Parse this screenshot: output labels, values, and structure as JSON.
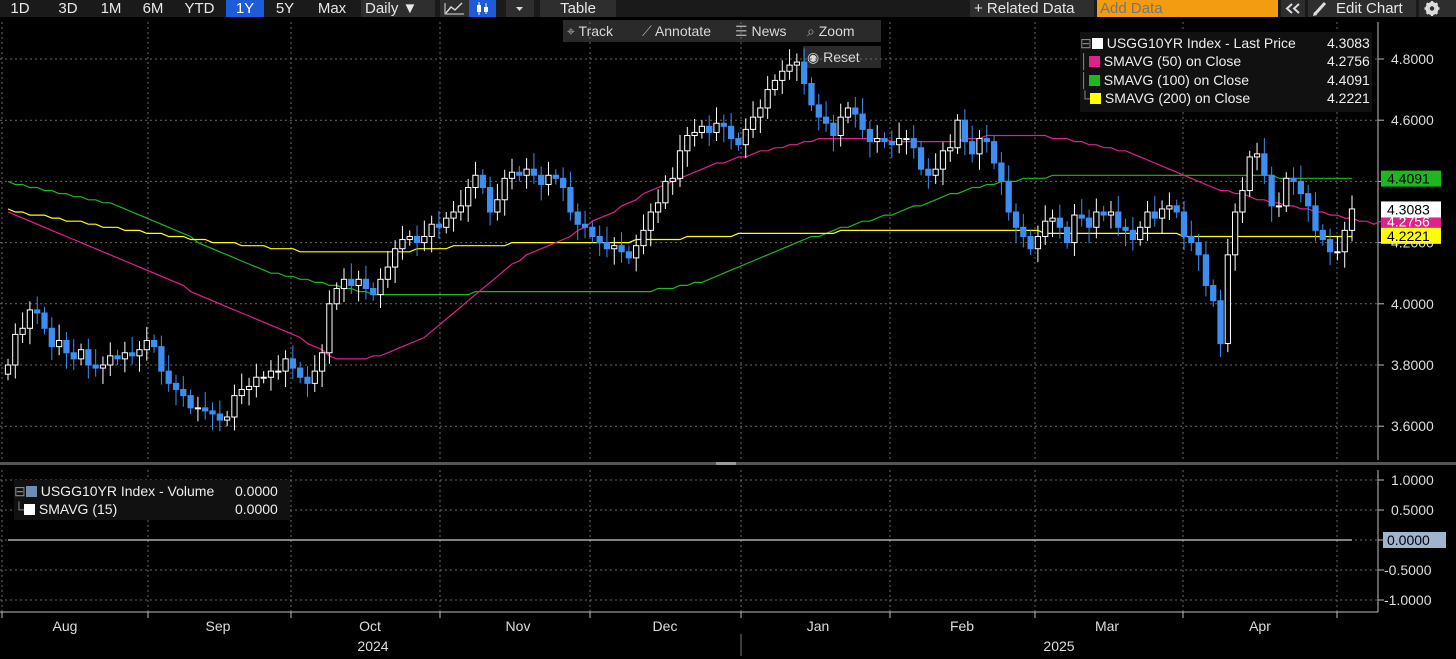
{
  "toolbar": {
    "ranges": [
      "1D",
      "3D",
      "1M",
      "6M",
      "YTD",
      "1Y",
      "5Y",
      "Max"
    ],
    "active_range": "1Y",
    "interval": "Daily ▼",
    "table": "Table",
    "related": "+ Related Data",
    "add_placeholder": "Add Data",
    "edit_chart": "Edit Chart"
  },
  "subtoolbar": {
    "track": "Track",
    "annotate": "Annotate",
    "news": "News",
    "zoom": "Zoom",
    "reset": "Reset"
  },
  "legend_main": [
    {
      "label": "USGG10YR Index - Last Price",
      "value": "4.3083",
      "color": "#ffffff"
    },
    {
      "label": "SMAVG (50)  on Close",
      "value": "4.2756",
      "color": "#e0218a"
    },
    {
      "label": "SMAVG (100)  on Close",
      "value": "4.4091",
      "color": "#1db81d"
    },
    {
      "label": "SMAVG (200)  on Close",
      "value": "4.2221",
      "color": "#ffff00"
    }
  ],
  "legend_lower": [
    {
      "label": "USGG10YR Index - Volume",
      "value": "0.0000",
      "color": "#6e8cb4"
    },
    {
      "label": "SMAVG (15)",
      "value": "0.0000",
      "color": "#ffffff"
    }
  ],
  "chart_data": [
    {
      "type": "candlestick",
      "title": "USGG10YR Index",
      "ylim": [
        3.5,
        4.9
      ],
      "yticks": [
        "4.8000",
        "4.6000",
        "4.4000",
        "4.2000",
        "4.0000",
        "3.8000",
        "3.6000"
      ],
      "months": [
        "Aug",
        "Sep",
        "Oct",
        "Nov",
        "Dec",
        "Jan",
        "Feb",
        "Mar",
        "Apr"
      ],
      "years": [
        "2024",
        "2025"
      ],
      "last_price": 4.3083,
      "value_tags": [
        {
          "text": "4.4091",
          "value": 4.4091,
          "bg": "#1db81d",
          "fg": "#000000"
        },
        {
          "text": "4.3083",
          "value": 4.3083,
          "bg": "#ffffff",
          "fg": "#000000"
        },
        {
          "text": "4.2756",
          "value": 4.2756,
          "bg": "#e0218a",
          "fg": "#ffffff"
        },
        {
          "text": "4.2221",
          "value": 4.2221,
          "bg": "#ffff00",
          "fg": "#000000"
        }
      ],
      "close": [
        3.8,
        3.9,
        3.92,
        3.98,
        3.97,
        3.92,
        3.86,
        3.88,
        3.84,
        3.82,
        3.85,
        3.8,
        3.79,
        3.8,
        3.83,
        3.82,
        3.84,
        3.83,
        3.85,
        3.88,
        3.86,
        3.78,
        3.74,
        3.72,
        3.7,
        3.66,
        3.66,
        3.65,
        3.64,
        3.62,
        3.63,
        3.7,
        3.72,
        3.73,
        3.76,
        3.76,
        3.78,
        3.78,
        3.82,
        3.79,
        3.76,
        3.74,
        3.78,
        3.84,
        4.0,
        4.05,
        4.08,
        4.06,
        4.08,
        4.05,
        4.03,
        4.08,
        4.12,
        4.18,
        4.21,
        4.22,
        4.2,
        4.22,
        4.26,
        4.25,
        4.28,
        4.3,
        4.32,
        4.38,
        4.42,
        4.38,
        4.3,
        4.34,
        4.41,
        4.43,
        4.42,
        4.44,
        4.42,
        4.39,
        4.42,
        4.41,
        4.38,
        4.3,
        4.26,
        4.25,
        4.22,
        4.2,
        4.18,
        4.19,
        4.17,
        4.15,
        4.19,
        4.24,
        4.3,
        4.33,
        4.4,
        4.41,
        4.5,
        4.55,
        4.56,
        4.58,
        4.56,
        4.59,
        4.58,
        4.54,
        4.52,
        4.57,
        4.61,
        4.64,
        4.7,
        4.73,
        4.76,
        4.78,
        4.79,
        4.72,
        4.65,
        4.61,
        4.59,
        4.55,
        4.61,
        4.64,
        4.62,
        4.57,
        4.53,
        4.54,
        4.53,
        4.52,
        4.54,
        4.54,
        4.51,
        4.44,
        4.42,
        4.44,
        4.5,
        4.51,
        4.6,
        4.53,
        4.49,
        4.54,
        4.53,
        4.46,
        4.4,
        4.3,
        4.25,
        4.22,
        4.18,
        4.22,
        4.27,
        4.28,
        4.25,
        4.2,
        4.29,
        4.28,
        4.25,
        4.3,
        4.29,
        4.3,
        4.25,
        4.24,
        4.21,
        4.25,
        4.3,
        4.28,
        4.31,
        4.32,
        4.3,
        4.22,
        4.2,
        4.16,
        4.06,
        4.01,
        3.87,
        4.16,
        4.3,
        4.37,
        4.48,
        4.49,
        4.42,
        4.32,
        4.32,
        4.41,
        4.4,
        4.36,
        4.32,
        4.24,
        4.21,
        4.17,
        4.17,
        4.24,
        4.31
      ],
      "sma50": [
        4.3,
        4.29,
        4.28,
        4.27,
        4.26,
        4.25,
        4.24,
        4.23,
        4.22,
        4.21,
        4.2,
        4.19,
        4.18,
        4.17,
        4.16,
        4.15,
        4.14,
        4.13,
        4.12,
        4.11,
        4.1,
        4.09,
        4.08,
        4.07,
        4.06,
        4.04,
        4.03,
        4.02,
        4.01,
        4.0,
        3.99,
        3.98,
        3.97,
        3.96,
        3.95,
        3.94,
        3.93,
        3.92,
        3.91,
        3.9,
        3.89,
        3.87,
        3.86,
        3.85,
        3.83,
        3.82,
        3.82,
        3.82,
        3.82,
        3.82,
        3.83,
        3.83,
        3.84,
        3.85,
        3.86,
        3.87,
        3.88,
        3.89,
        3.91,
        3.93,
        3.95,
        3.97,
        3.99,
        4.01,
        4.03,
        4.05,
        4.07,
        4.09,
        4.11,
        4.13,
        4.14,
        4.16,
        4.17,
        4.18,
        4.19,
        4.2,
        4.21,
        4.22,
        4.24,
        4.25,
        4.27,
        4.28,
        4.29,
        4.3,
        4.32,
        4.33,
        4.34,
        4.36,
        4.37,
        4.38,
        4.39,
        4.4,
        4.41,
        4.42,
        4.43,
        4.44,
        4.45,
        4.46,
        4.46,
        4.47,
        4.48,
        4.48,
        4.49,
        4.5,
        4.5,
        4.51,
        4.51,
        4.52,
        4.52,
        4.53,
        4.53,
        4.54,
        4.54,
        4.54,
        4.54,
        4.54,
        4.54,
        4.54,
        4.54,
        4.54,
        4.54,
        4.53,
        4.53,
        4.53,
        4.53,
        4.53,
        4.53,
        4.53,
        4.53,
        4.53,
        4.53,
        4.54,
        4.54,
        4.54,
        4.55,
        4.55,
        4.55,
        4.55,
        4.55,
        4.55,
        4.55,
        4.55,
        4.55,
        4.54,
        4.54,
        4.54,
        4.53,
        4.53,
        4.52,
        4.52,
        4.51,
        4.51,
        4.5,
        4.5,
        4.49,
        4.48,
        4.47,
        4.46,
        4.45,
        4.44,
        4.43,
        4.42,
        4.41,
        4.4,
        4.39,
        4.38,
        4.37,
        4.37,
        4.36,
        4.36,
        4.35,
        4.34,
        4.34,
        4.33,
        4.33,
        4.32,
        4.32,
        4.31,
        4.31,
        4.3,
        4.3,
        4.29,
        4.29,
        4.28,
        4.28,
        4.27,
        4.27,
        4.26,
        4.27
      ],
      "sma100": [
        4.4,
        4.39,
        4.39,
        4.38,
        4.38,
        4.37,
        4.37,
        4.36,
        4.36,
        4.35,
        4.35,
        4.34,
        4.34,
        4.33,
        4.33,
        4.32,
        4.31,
        4.3,
        4.29,
        4.28,
        4.27,
        4.26,
        4.25,
        4.24,
        4.23,
        4.22,
        4.2,
        4.19,
        4.18,
        4.17,
        4.16,
        4.15,
        4.14,
        4.13,
        4.12,
        4.11,
        4.1,
        4.1,
        4.09,
        4.09,
        4.08,
        4.08,
        4.07,
        4.07,
        4.06,
        4.06,
        4.05,
        4.05,
        4.04,
        4.04,
        4.03,
        4.03,
        4.03,
        4.03,
        4.03,
        4.03,
        4.03,
        4.03,
        4.03,
        4.03,
        4.03,
        4.03,
        4.03,
        4.03,
        4.04,
        4.04,
        4.04,
        4.04,
        4.04,
        4.04,
        4.04,
        4.04,
        4.04,
        4.04,
        4.04,
        4.04,
        4.04,
        4.04,
        4.04,
        4.04,
        4.04,
        4.04,
        4.04,
        4.04,
        4.04,
        4.04,
        4.04,
        4.04,
        4.04,
        4.05,
        4.05,
        4.05,
        4.06,
        4.06,
        4.07,
        4.07,
        4.08,
        4.09,
        4.1,
        4.11,
        4.12,
        4.13,
        4.14,
        4.15,
        4.16,
        4.17,
        4.18,
        4.19,
        4.2,
        4.21,
        4.22,
        4.22,
        4.23,
        4.24,
        4.25,
        4.25,
        4.26,
        4.27,
        4.27,
        4.28,
        4.29,
        4.29,
        4.3,
        4.31,
        4.32,
        4.32,
        4.33,
        4.34,
        4.35,
        4.36,
        4.36,
        4.37,
        4.38,
        4.38,
        4.39,
        4.39,
        4.4,
        4.4,
        4.4,
        4.41,
        4.41,
        4.41,
        4.41,
        4.42,
        4.42,
        4.42,
        4.42,
        4.42,
        4.42,
        4.42,
        4.42,
        4.42,
        4.42,
        4.42,
        4.42,
        4.42,
        4.42,
        4.42,
        4.42,
        4.42,
        4.42,
        4.42,
        4.42,
        4.42,
        4.42,
        4.42,
        4.42,
        4.42,
        4.42,
        4.42,
        4.42,
        4.42,
        4.42,
        4.42,
        4.41,
        4.41,
        4.41,
        4.41,
        4.41,
        4.41,
        4.41,
        4.41,
        4.41,
        4.41,
        4.41
      ],
      "sma200": [
        4.31,
        4.3,
        4.3,
        4.29,
        4.29,
        4.29,
        4.28,
        4.28,
        4.27,
        4.27,
        4.27,
        4.26,
        4.26,
        4.25,
        4.25,
        4.25,
        4.24,
        4.24,
        4.24,
        4.23,
        4.23,
        4.23,
        4.22,
        4.22,
        4.22,
        4.21,
        4.21,
        4.21,
        4.2,
        4.2,
        4.2,
        4.2,
        4.19,
        4.19,
        4.19,
        4.19,
        4.18,
        4.18,
        4.18,
        4.18,
        4.17,
        4.17,
        4.17,
        4.17,
        4.17,
        4.17,
        4.17,
        4.17,
        4.17,
        4.17,
        4.17,
        4.17,
        4.17,
        4.17,
        4.17,
        4.17,
        4.18,
        4.18,
        4.18,
        4.18,
        4.18,
        4.19,
        4.19,
        4.19,
        4.19,
        4.19,
        4.19,
        4.19,
        4.19,
        4.2,
        4.2,
        4.2,
        4.2,
        4.2,
        4.2,
        4.2,
        4.2,
        4.2,
        4.2,
        4.2,
        4.2,
        4.2,
        4.2,
        4.2,
        4.2,
        4.2,
        4.21,
        4.21,
        4.21,
        4.21,
        4.21,
        4.21,
        4.21,
        4.22,
        4.22,
        4.22,
        4.22,
        4.22,
        4.22,
        4.22,
        4.23,
        4.23,
        4.23,
        4.23,
        4.23,
        4.23,
        4.23,
        4.23,
        4.23,
        4.23,
        4.23,
        4.23,
        4.23,
        4.23,
        4.24,
        4.24,
        4.24,
        4.24,
        4.24,
        4.24,
        4.24,
        4.24,
        4.24,
        4.24,
        4.24,
        4.24,
        4.24,
        4.24,
        4.24,
        4.24,
        4.24,
        4.24,
        4.24,
        4.24,
        4.24,
        4.24,
        4.24,
        4.24,
        4.24,
        4.24,
        4.24,
        4.24,
        4.23,
        4.23,
        4.23,
        4.23,
        4.23,
        4.23,
        4.23,
        4.23,
        4.23,
        4.23,
        4.23,
        4.23,
        4.23,
        4.23,
        4.23,
        4.23,
        4.23,
        4.23,
        4.23,
        4.22,
        4.22,
        4.22,
        4.22,
        4.22,
        4.22,
        4.22,
        4.22,
        4.22,
        4.22,
        4.22,
        4.22,
        4.22,
        4.22,
        4.22,
        4.22,
        4.22,
        4.22,
        4.22,
        4.22,
        4.22,
        4.22,
        4.22,
        4.22
      ]
    },
    {
      "type": "line",
      "title": "USGG10YR Index - Volume",
      "ylim": [
        -1.2,
        1.2
      ],
      "yticks": [
        "1.0000",
        "0.5000",
        "0.0000",
        "-0.5000",
        "-1.0000"
      ],
      "value": 0.0,
      "value_tag": "0.0000"
    }
  ]
}
